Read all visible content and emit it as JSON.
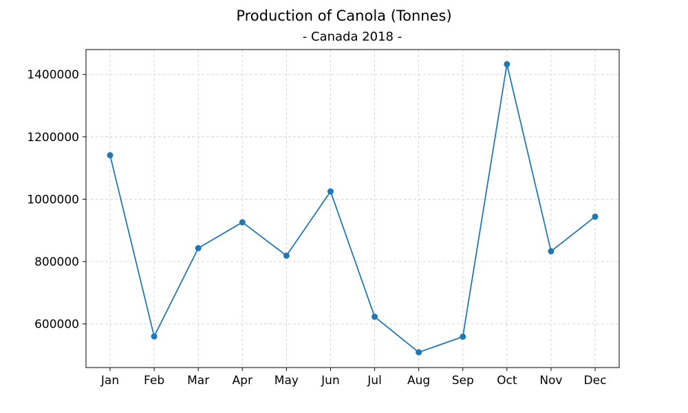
{
  "chart_data": {
    "type": "line",
    "title": "Production of Canola (Tonnes)",
    "subtitle": "- Canada 2018 -",
    "xlabel": "",
    "ylabel": "",
    "categories": [
      "Jan",
      "Feb",
      "Mar",
      "Apr",
      "May",
      "Jun",
      "Jul",
      "Aug",
      "Sep",
      "Oct",
      "Nov",
      "Dec"
    ],
    "series": [
      {
        "values": [
          1141000,
          560000,
          843000,
          926000,
          819000,
          1025000,
          623000,
          509000,
          559000,
          1433000,
          833000,
          944000
        ],
        "color": "#1f77b4",
        "marker": "circle"
      }
    ],
    "ylim": [
      460000,
      1480000
    ],
    "yticks": [
      600000,
      800000,
      1000000,
      1200000,
      1400000
    ],
    "ytick_labels": [
      "600000",
      "800000",
      "1000000",
      "1200000",
      "1400000"
    ],
    "grid": true,
    "grid_style": "dashed",
    "legend": "none"
  }
}
